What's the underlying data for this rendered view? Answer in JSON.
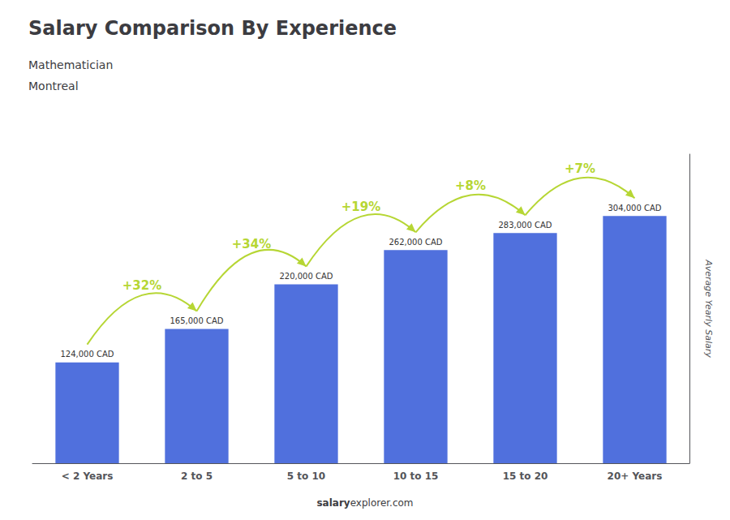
{
  "chart_data": {
    "type": "bar",
    "title": "Salary Comparison By Experience",
    "subtitle": [
      "Mathematician",
      "Montreal"
    ],
    "footer": [
      "salary",
      "explorer.com"
    ],
    "ylabel": "Average Yearly Salary",
    "categories": [
      "< 2 Years",
      "2 to 5",
      "5 to 10",
      "10 to 15",
      "15 to 20",
      "20+ Years"
    ],
    "values": [
      124000,
      165000,
      220000,
      262000,
      283000,
      304000
    ],
    "value_labels": [
      "124,000 CAD",
      "165,000 CAD",
      "220,000 CAD",
      "262,000 CAD",
      "283,000 CAD",
      "304,000 CAD"
    ],
    "data_labels": true,
    "annotations": [
      {
        "text": "+32%",
        "from": "< 2 Years",
        "to": "2 to 5"
      },
      {
        "text": "+34%",
        "from": "2 to 5",
        "to": "5 to 10"
      },
      {
        "text": "+19%",
        "from": "5 to 10",
        "to": "10 to 15"
      },
      {
        "text": "+8%",
        "from": "10 to 15",
        "to": "15 to 20"
      },
      {
        "text": "+7%",
        "from": "15 to 20",
        "to": "20+ Years"
      }
    ],
    "ylim": [
      0,
      380000
    ],
    "grid": false,
    "tick_labels": "x"
  }
}
